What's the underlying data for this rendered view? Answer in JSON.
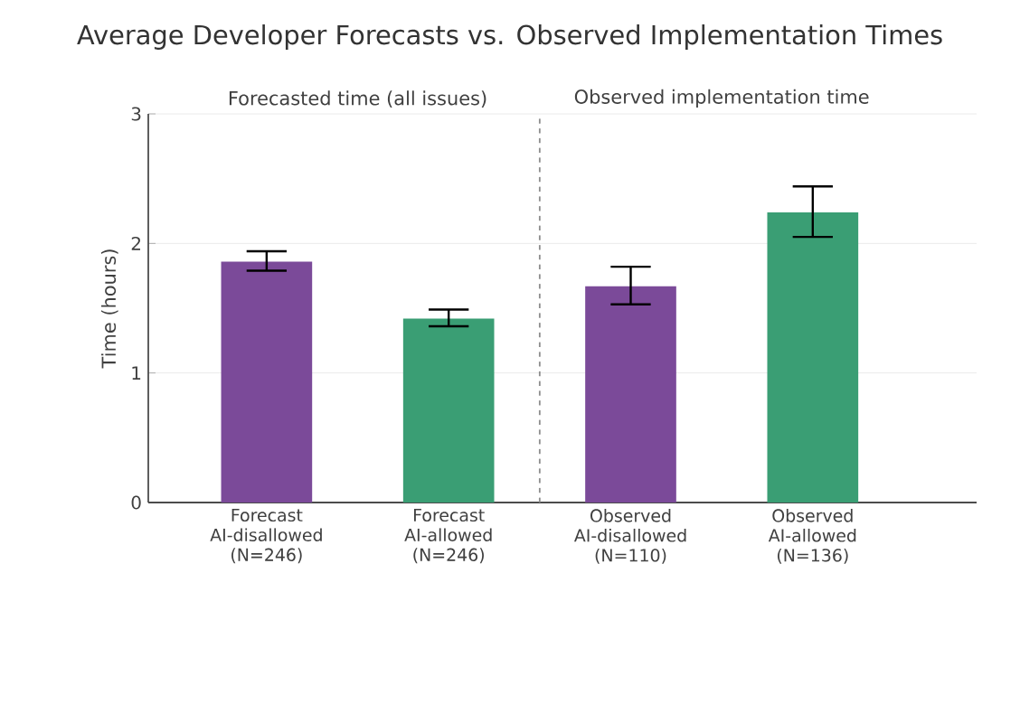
{
  "chart_data": {
    "type": "bar",
    "title": "Average Developer Forecasts vs. Observed Implementation Times",
    "ylabel": "Time (hours)",
    "categories": [
      "Forecast AI-disallowed (N=246)",
      "Forecast AI-allowed (N=246)",
      "Observed AI-disallowed (N=110)",
      "Observed AI-allowed (N=136)"
    ],
    "values": [
      1.86,
      1.42,
      1.67,
      2.24
    ],
    "colors": [
      "#7b4a99",
      "#3a9e74",
      "#7b4a99",
      "#3a9e74"
    ],
    "errors": [
      [
        1.79,
        1.94
      ],
      [
        1.36,
        1.49
      ],
      [
        1.53,
        1.82
      ],
      [
        2.05,
        2.44
      ]
    ],
    "ylim": [
      0,
      3
    ],
    "yticks": [
      0,
      1,
      2,
      3
    ],
    "grid": "y",
    "annotations": [
      "Forecasted time (all issues)",
      "Observed implementation time"
    ]
  }
}
